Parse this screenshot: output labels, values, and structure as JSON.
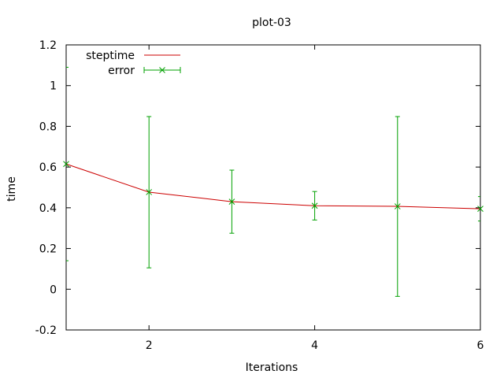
{
  "chart_data": {
    "type": "line",
    "title": "plot-03",
    "xlabel": "Iterations",
    "ylabel": "time",
    "xlim": [
      1,
      6
    ],
    "ylim": [
      -0.2,
      1.2
    ],
    "x_ticks": [
      2,
      4,
      6
    ],
    "y_ticks": [
      -0.2,
      0,
      0.2,
      0.4,
      0.6,
      0.8,
      1,
      1.2
    ],
    "x_tick_labels": [
      "2",
      "4",
      "6"
    ],
    "y_tick_labels": [
      "-0.2",
      "0",
      "0.2",
      "0.4",
      "0.6",
      "0.8",
      "1",
      "1.2"
    ],
    "grid": false,
    "legend_position": "top-left",
    "series": [
      {
        "name": "steptime",
        "style": "line",
        "color": "#cc0000",
        "x": [
          1,
          2,
          3,
          4,
          5,
          6
        ],
        "y": [
          0.615,
          0.477,
          0.43,
          0.41,
          0.407,
          0.395
        ]
      },
      {
        "name": "error",
        "style": "errorbars",
        "color": "#00a000",
        "x": [
          1,
          2,
          3,
          4,
          5,
          6
        ],
        "y": [
          0.615,
          0.477,
          0.43,
          0.41,
          0.407,
          0.395
        ],
        "ylow": [
          0.14,
          0.105,
          0.275,
          0.34,
          -0.035,
          0.335
        ],
        "yhigh": [
          1.09,
          0.848,
          0.585,
          0.48,
          0.848,
          0.455
        ]
      }
    ]
  }
}
